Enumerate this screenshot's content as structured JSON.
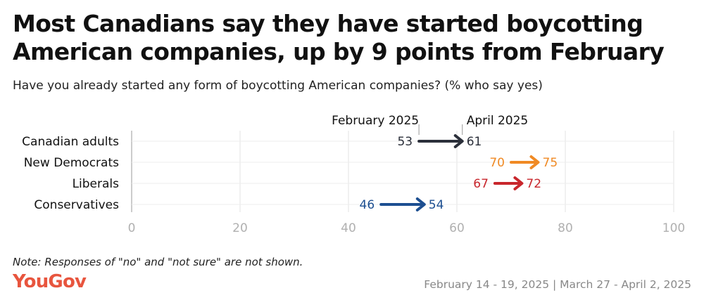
{
  "header": {
    "title": "Most Canadians say they have started boycotting American companies, up by 9 points from February",
    "subtitle": "Have you already started any form of boycotting American companies? (% who say yes)"
  },
  "footer": {
    "note": "Note: Responses of \"no\" and \"not sure\" are not shown.",
    "brand": "YouGov",
    "dates": "February 14 - 19, 2025 | March 27 - April 2, 2025"
  },
  "chart_data": {
    "type": "arrow-dot",
    "title": "Most Canadians say they have started boycotting American companies, up by 9 points from February",
    "subtitle": "Have you already started any form of boycotting American companies? (% who say yes)",
    "start_label": "February 2025",
    "end_label": "April 2025",
    "xlim": [
      0,
      100
    ],
    "xticks": [
      0,
      20,
      40,
      60,
      80,
      100
    ],
    "grid": true,
    "categories": [
      "Canadian adults",
      "New Democrats",
      "Liberals",
      "Conservatives"
    ],
    "series": [
      {
        "name": "February 2025",
        "values": [
          53,
          70,
          67,
          46
        ]
      },
      {
        "name": "April 2025",
        "values": [
          61,
          75,
          72,
          54
        ]
      }
    ],
    "colors": [
      "#2b2f3a",
      "#f08a24",
      "#c8262c",
      "#1d4f91"
    ]
  }
}
